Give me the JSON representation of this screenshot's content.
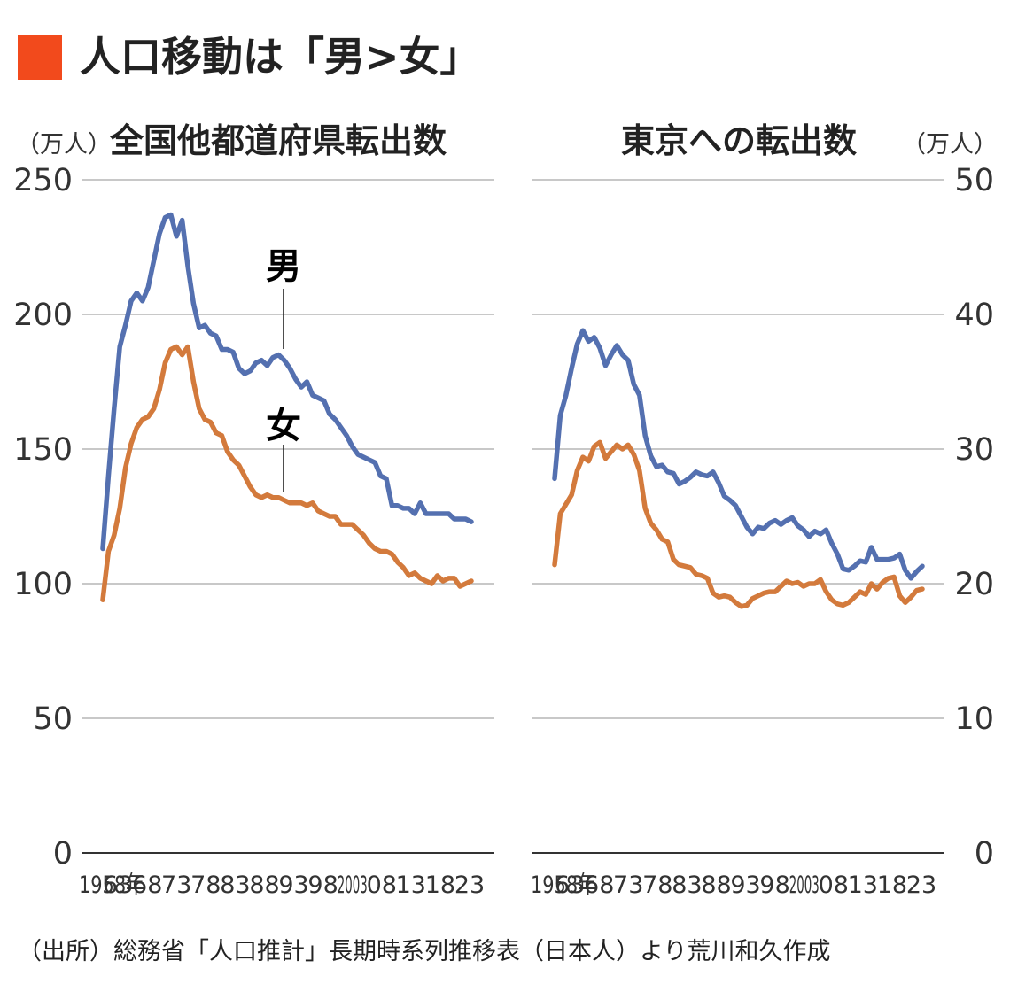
{
  "title": "人口移動は「男>女」",
  "source": "（出所）総務省「人口推計」長期時系列推移表（日本人）より荒川和久作成",
  "colors": {
    "accent": "#f24a1c",
    "male": "#5470b0",
    "female": "#d37a3c"
  },
  "chart_data": [
    {
      "type": "line",
      "title": "全国他都道府県転出数",
      "ylabel": "（万人）",
      "ylim": [
        0,
        250
      ],
      "yticks": [
        0,
        50,
        100,
        150,
        200,
        250
      ],
      "xlim": [
        1958,
        2023
      ],
      "xtick_labels": [
        "1958年",
        "63",
        "68",
        "73",
        "78",
        "83",
        "88",
        "93",
        "98",
        "2003",
        "08",
        "13",
        "18",
        "23"
      ],
      "grid": true,
      "annotations": [
        "男",
        "女"
      ],
      "series": [
        {
          "name": "男",
          "x": [
            1958,
            1959,
            1960,
            1961,
            1962,
            1963,
            1964,
            1965,
            1966,
            1967,
            1968,
            1969,
            1970,
            1971,
            1972,
            1973,
            1974,
            1975,
            1976,
            1977,
            1978,
            1979,
            1980,
            1981,
            1982,
            1983,
            1984,
            1985,
            1986,
            1987,
            1988,
            1989,
            1990,
            1991,
            1992,
            1993,
            1994,
            1995,
            1996,
            1997,
            1998,
            1999,
            2000,
            2001,
            2002,
            2003,
            2004,
            2005,
            2006,
            2007,
            2008,
            2009,
            2010,
            2011,
            2012,
            2013,
            2014,
            2015,
            2016,
            2017,
            2018,
            2019,
            2020,
            2021,
            2022,
            2023
          ],
          "values": [
            113,
            140,
            165,
            188,
            196,
            205,
            208,
            205,
            210,
            220,
            230,
            236,
            237,
            229,
            235,
            218,
            204,
            195,
            196,
            193,
            192,
            187,
            187,
            186,
            180,
            178,
            179,
            182,
            183,
            181,
            184,
            185,
            183,
            180,
            176,
            173,
            175,
            170,
            169,
            168,
            163,
            161,
            158,
            155,
            151,
            148,
            147,
            146,
            145,
            140,
            139,
            129,
            129,
            128,
            128,
            126,
            130,
            126,
            126,
            126,
            126,
            126,
            124,
            124,
            124,
            123
          ]
        },
        {
          "name": "女",
          "x": [
            1958,
            1959,
            1960,
            1961,
            1962,
            1963,
            1964,
            1965,
            1966,
            1967,
            1968,
            1969,
            1970,
            1971,
            1972,
            1973,
            1974,
            1975,
            1976,
            1977,
            1978,
            1979,
            1980,
            1981,
            1982,
            1983,
            1984,
            1985,
            1986,
            1987,
            1988,
            1989,
            1990,
            1991,
            1992,
            1993,
            1994,
            1995,
            1996,
            1997,
            1998,
            1999,
            2000,
            2001,
            2002,
            2003,
            2004,
            2005,
            2006,
            2007,
            2008,
            2009,
            2010,
            2011,
            2012,
            2013,
            2014,
            2015,
            2016,
            2017,
            2018,
            2019,
            2020,
            2021,
            2022,
            2023
          ],
          "values": [
            94,
            112,
            118,
            128,
            143,
            152,
            158,
            161,
            162,
            165,
            172,
            182,
            187,
            188,
            185,
            188,
            175,
            165,
            161,
            160,
            156,
            155,
            149,
            146,
            144,
            140,
            136,
            133,
            132,
            133,
            132,
            132,
            131,
            130,
            130,
            130,
            129,
            130,
            127,
            126,
            125,
            125,
            122,
            122,
            122,
            120,
            118,
            115,
            113,
            112,
            112,
            111,
            108,
            106,
            103,
            104,
            102,
            101,
            100,
            103,
            101,
            102,
            102,
            99,
            100,
            101
          ]
        }
      ]
    },
    {
      "type": "line",
      "title": "東京への転出数",
      "ylabel": "（万人）",
      "ylim": [
        0,
        50
      ],
      "yticks": [
        0,
        10,
        20,
        30,
        40,
        50
      ],
      "xlim": [
        1958,
        2023
      ],
      "xtick_labels": [
        "1958年",
        "63",
        "68",
        "73",
        "78",
        "83",
        "88",
        "93",
        "98",
        "2003",
        "08",
        "13",
        "18",
        "23"
      ],
      "grid": true,
      "series": [
        {
          "name": "男",
          "x": [
            1958,
            1959,
            1960,
            1961,
            1962,
            1963,
            1964,
            1965,
            1966,
            1967,
            1968,
            1969,
            1970,
            1971,
            1972,
            1973,
            1974,
            1975,
            1976,
            1977,
            1978,
            1979,
            1980,
            1981,
            1982,
            1983,
            1984,
            1985,
            1986,
            1987,
            1988,
            1989,
            1990,
            1991,
            1992,
            1993,
            1994,
            1995,
            1996,
            1997,
            1998,
            1999,
            2000,
            2001,
            2002,
            2003,
            2004,
            2005,
            2006,
            2007,
            2008,
            2009,
            2010,
            2011,
            2012,
            2013,
            2014,
            2015,
            2016,
            2017,
            2018,
            2019,
            2020,
            2021,
            2022,
            2023
          ],
          "values": [
            27.8,
            32.5,
            34,
            36,
            37.8,
            38.8,
            38,
            38.3,
            37.5,
            36.2,
            37,
            37.7,
            37,
            36.6,
            34.8,
            34,
            31,
            29.5,
            28.7,
            28.8,
            28.3,
            28.2,
            27.4,
            27.6,
            27.9,
            28.3,
            28.1,
            28.0,
            28.3,
            27.5,
            26.5,
            26.2,
            25.8,
            25.0,
            24.2,
            23.7,
            24.2,
            24.1,
            24.5,
            24.7,
            24.4,
            24.7,
            24.9,
            24.3,
            24.0,
            23.5,
            23.9,
            23.7,
            24.0,
            23.0,
            22.2,
            21.1,
            21.0,
            21.3,
            21.7,
            21.6,
            22.7,
            21.8,
            21.8,
            21.8,
            21.9,
            22.2,
            21.0,
            20.4,
            20.9,
            21.3
          ]
        },
        {
          "name": "女",
          "x": [
            1958,
            1959,
            1960,
            1961,
            1962,
            1963,
            1964,
            1965,
            1966,
            1967,
            1968,
            1969,
            1970,
            1971,
            1972,
            1973,
            1974,
            1975,
            1976,
            1977,
            1978,
            1979,
            1980,
            1981,
            1982,
            1983,
            1984,
            1985,
            1986,
            1987,
            1988,
            1989,
            1990,
            1991,
            1992,
            1993,
            1994,
            1995,
            1996,
            1997,
            1998,
            1999,
            2000,
            2001,
            2002,
            2003,
            2004,
            2005,
            2006,
            2007,
            2008,
            2009,
            2010,
            2011,
            2012,
            2013,
            2014,
            2015,
            2016,
            2017,
            2018,
            2019,
            2020,
            2021,
            2022,
            2023
          ],
          "values": [
            21.4,
            25.2,
            25.9,
            26.6,
            28.4,
            29.4,
            29.1,
            30.2,
            30.5,
            29.3,
            29.8,
            30.3,
            30,
            30.3,
            29.6,
            28.4,
            25.6,
            24.5,
            24.0,
            23.3,
            23.1,
            21.8,
            21.4,
            21.3,
            21.2,
            20.7,
            20.6,
            20.4,
            19.3,
            19.0,
            19.1,
            19.0,
            18.6,
            18.3,
            18.4,
            18.9,
            19.1,
            19.3,
            19.4,
            19.4,
            19.8,
            20.2,
            20.0,
            20.1,
            19.8,
            20.0,
            20.0,
            20.3,
            19.4,
            18.8,
            18.5,
            18.4,
            18.6,
            19.0,
            19.4,
            19.2,
            20.0,
            19.6,
            20.1,
            20.4,
            20.5,
            19.1,
            18.6,
            19.0,
            19.5,
            19.6
          ]
        }
      ]
    }
  ]
}
